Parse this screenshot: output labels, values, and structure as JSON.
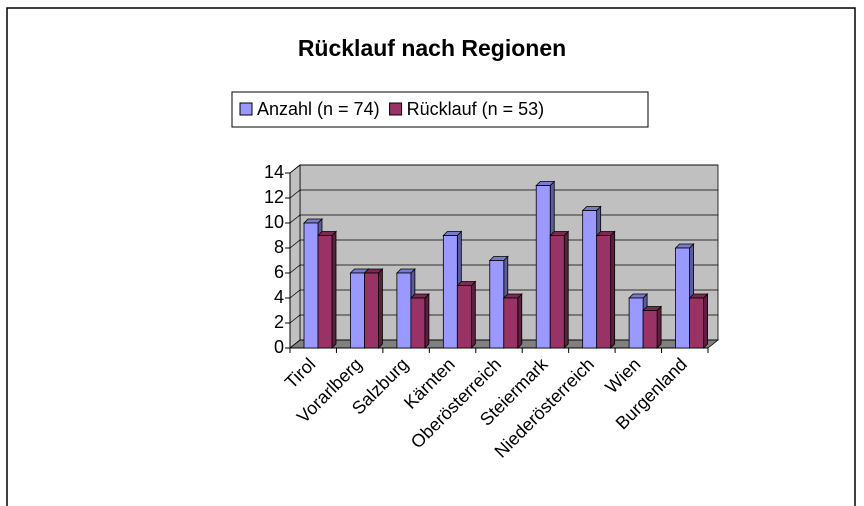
{
  "chart_data": {
    "type": "bar3d",
    "title": "Rücklauf nach Regionen",
    "categories": [
      "Tirol",
      "Vorarlberg",
      "Salzburg",
      "Kärnten",
      "Oberösterreich",
      "Steiermark",
      "Niederösterreich",
      "Wien",
      "Burgenland"
    ],
    "series": [
      {
        "name": "Anzahl (n = 74)",
        "color": "#9999ff",
        "values": [
          10,
          6,
          6,
          9,
          7,
          13,
          11,
          4,
          8
        ]
      },
      {
        "name": "Rücklauf (n = 53)",
        "color": "#993366",
        "values": [
          9,
          6,
          4,
          5,
          4,
          9,
          9,
          3,
          4
        ]
      }
    ],
    "ylim": [
      0,
      14
    ],
    "yticks": [
      0,
      2,
      4,
      6,
      8,
      10,
      12,
      14
    ],
    "grid": true
  }
}
